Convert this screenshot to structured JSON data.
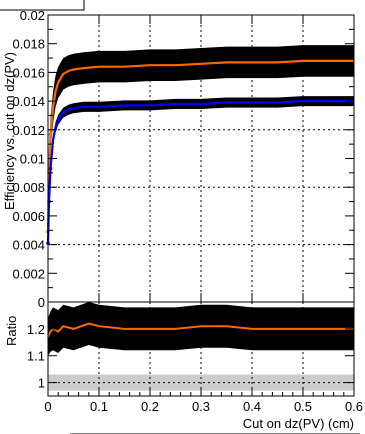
{
  "chart_data": [
    {
      "type": "line",
      "panel": "main",
      "ylabel": "Efficiency vs. cut on dz(PV)",
      "xlim": [
        0,
        0.6
      ],
      "ylim": [
        0,
        0.02
      ],
      "yticks": [
        "0",
        "0.002",
        "0.004",
        "0.006",
        "0.008",
        "0.01",
        "0.012",
        "0.014",
        "0.016",
        "0.018",
        "0.02"
      ],
      "grid": true,
      "series": [
        {
          "color": "#ff6600",
          "band_color": "#000000",
          "x": [
            0.0,
            0.002,
            0.005,
            0.01,
            0.015,
            0.02,
            0.03,
            0.04,
            0.05,
            0.07,
            0.1,
            0.15,
            0.2,
            0.25,
            0.3,
            0.35,
            0.4,
            0.45,
            0.5,
            0.55,
            0.6
          ],
          "y": [
            0.0049,
            0.009,
            0.0117,
            0.0136,
            0.0147,
            0.0153,
            0.0159,
            0.0161,
            0.0162,
            0.0163,
            0.0164,
            0.0164,
            0.0165,
            0.0165,
            0.0166,
            0.0167,
            0.0167,
            0.0167,
            0.0168,
            0.0168,
            0.0168
          ],
          "band": [
            0.0011,
            0.0011,
            0.0011,
            0.0011,
            0.0011,
            0.0011,
            0.0011,
            0.0011,
            0.0011,
            0.0011,
            0.0011,
            0.0011,
            0.0011,
            0.0011,
            0.0011,
            0.0011,
            0.0011,
            0.0011,
            0.0011,
            0.0011,
            0.0011
          ]
        },
        {
          "color": "#0000ff",
          "band_color": "#000000",
          "x": [
            0.0,
            0.002,
            0.005,
            0.01,
            0.015,
            0.02,
            0.03,
            0.04,
            0.05,
            0.07,
            0.1,
            0.15,
            0.2,
            0.25,
            0.3,
            0.35,
            0.4,
            0.45,
            0.5,
            0.55,
            0.6
          ],
          "y": [
            0.0041,
            0.007,
            0.0093,
            0.0113,
            0.0122,
            0.0127,
            0.0132,
            0.0134,
            0.0135,
            0.0136,
            0.0136,
            0.0137,
            0.0137,
            0.0138,
            0.0138,
            0.0139,
            0.0139,
            0.0139,
            0.014,
            0.014,
            0.014
          ],
          "band": [
            0.00035,
            0.00035,
            0.00035,
            0.00035,
            0.00035,
            0.00035,
            0.00035,
            0.00035,
            0.00035,
            0.00035,
            0.00035,
            0.00035,
            0.00035,
            0.00035,
            0.00035,
            0.00035,
            0.00035,
            0.00035,
            0.00035,
            0.00035,
            0.00035
          ]
        }
      ]
    },
    {
      "type": "line",
      "panel": "ratio",
      "xlabel": "Cut on dz(PV) (cm)",
      "ylabel": "Ratio",
      "xlim": [
        0,
        0.6
      ],
      "ylim": [
        0.95,
        1.3
      ],
      "xticks": [
        "0",
        "0.1",
        "0.2",
        "0.3",
        "0.4",
        "0.5",
        "0.6"
      ],
      "yticks": [
        "1",
        "1.1",
        "1.2"
      ],
      "reference_line": 1.0,
      "reference_band": [
        0.97,
        1.03
      ],
      "grid": true,
      "series": [
        {
          "color": "#ff6600",
          "band_color": "#000000",
          "x": [
            0.0,
            0.005,
            0.01,
            0.02,
            0.03,
            0.05,
            0.08,
            0.1,
            0.15,
            0.2,
            0.25,
            0.3,
            0.35,
            0.4,
            0.45,
            0.5,
            0.55,
            0.6
          ],
          "y": [
            1.17,
            1.19,
            1.2,
            1.19,
            1.21,
            1.2,
            1.22,
            1.21,
            1.2,
            1.2,
            1.2,
            1.21,
            1.21,
            1.2,
            1.2,
            1.2,
            1.2,
            1.2
          ],
          "band": [
            0.07,
            0.075,
            0.08,
            0.08,
            0.08,
            0.08,
            0.08,
            0.08,
            0.08,
            0.08,
            0.08,
            0.08,
            0.08,
            0.08,
            0.08,
            0.08,
            0.08,
            0.08
          ]
        }
      ]
    }
  ]
}
